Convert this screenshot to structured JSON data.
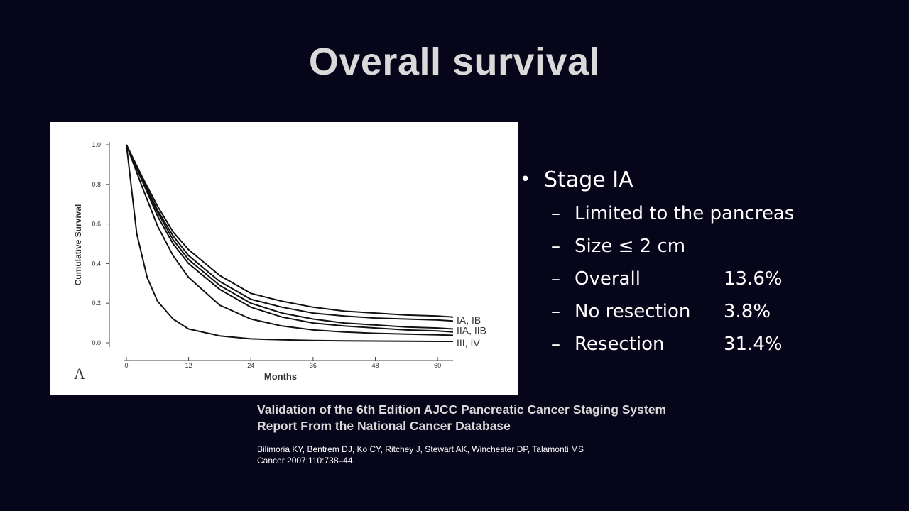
{
  "slide": {
    "title": "Overall survival"
  },
  "bullets": {
    "main": "Stage IA",
    "items": [
      {
        "label": "Limited to the pancreas",
        "value": ""
      },
      {
        "label": "Size ≤ 2 cm",
        "value": ""
      },
      {
        "label": "Overall",
        "value": "13.6%"
      },
      {
        "label": "No resection",
        "value": "3.8%"
      },
      {
        "label": "Resection",
        "value": "31.4%"
      }
    ]
  },
  "citation": {
    "title_line1": "Validation of the 6th Edition AJCC Pancreatic Cancer Staging System",
    "title_line2": "Report From the National Cancer Database",
    "authors": "Bilimoria KY, Bentrem DJ, Ko CY, Ritchey J, Stewart AK, Winchester DP, Talamonti MS",
    "journal": "Cancer 2007;110:738–44."
  },
  "chart_data": {
    "type": "line",
    "panel_label": "A",
    "xlabel": "Months",
    "ylabel": "Cumulative Survival",
    "xlim": [
      0,
      63
    ],
    "ylim": [
      0,
      1.0
    ],
    "x_ticks": [
      0,
      12,
      24,
      36,
      48,
      60
    ],
    "y_ticks": [
      0.0,
      0.2,
      0.4,
      0.6,
      0.8,
      1.0
    ],
    "y_tick_labels": [
      "0.0",
      "0.2",
      "0.4",
      "0.6",
      "0.8",
      "1.0"
    ],
    "grid": false,
    "group_labels": [
      {
        "text": "IA, IB",
        "y": 0.115
      },
      {
        "text": "IIA, IIB",
        "y": 0.063
      },
      {
        "text": "III, IV",
        "y": 0.0
      }
    ],
    "series": [
      {
        "x": [
          0,
          3,
          6,
          9,
          12,
          18,
          24,
          30,
          36,
          42,
          48,
          54,
          60,
          63
        ],
        "values": [
          1.0,
          0.84,
          0.69,
          0.56,
          0.47,
          0.34,
          0.25,
          0.21,
          0.18,
          0.16,
          0.15,
          0.14,
          0.135,
          0.13
        ]
      },
      {
        "x": [
          0,
          3,
          6,
          9,
          12,
          18,
          24,
          30,
          36,
          42,
          48,
          54,
          60,
          63
        ],
        "values": [
          1.0,
          0.83,
          0.67,
          0.54,
          0.44,
          0.31,
          0.22,
          0.18,
          0.15,
          0.135,
          0.125,
          0.12,
          0.115,
          0.11
        ]
      },
      {
        "x": [
          0,
          3,
          6,
          9,
          12,
          18,
          24,
          30,
          36,
          42,
          48,
          54,
          60,
          63
        ],
        "values": [
          1.0,
          0.83,
          0.66,
          0.52,
          0.42,
          0.29,
          0.2,
          0.15,
          0.12,
          0.1,
          0.09,
          0.08,
          0.075,
          0.07
        ]
      },
      {
        "x": [
          0,
          3,
          6,
          9,
          12,
          18,
          24,
          30,
          36,
          42,
          48,
          54,
          60,
          63
        ],
        "values": [
          1.0,
          0.82,
          0.64,
          0.5,
          0.4,
          0.27,
          0.18,
          0.13,
          0.1,
          0.085,
          0.075,
          0.065,
          0.06,
          0.055
        ]
      },
      {
        "x": [
          0,
          3,
          6,
          9,
          12,
          18,
          24,
          30,
          36,
          42,
          48,
          54,
          60,
          63
        ],
        "values": [
          1.0,
          0.79,
          0.59,
          0.44,
          0.33,
          0.19,
          0.12,
          0.085,
          0.065,
          0.055,
          0.048,
          0.044,
          0.04,
          0.038
        ]
      },
      {
        "x": [
          0,
          2,
          4,
          6,
          9,
          12,
          18,
          24,
          30,
          36,
          42,
          48,
          54,
          60,
          63
        ],
        "values": [
          1.0,
          0.55,
          0.33,
          0.21,
          0.12,
          0.07,
          0.035,
          0.02,
          0.015,
          0.012,
          0.01,
          0.009,
          0.008,
          0.007,
          0.007
        ]
      }
    ]
  }
}
